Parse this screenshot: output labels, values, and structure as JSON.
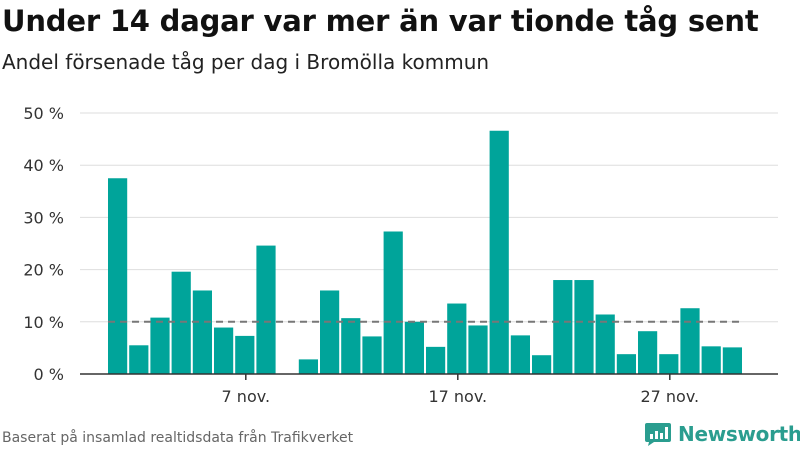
{
  "title": "Under 14 dagar var mer än var tionde tåg sent",
  "subtitle": "Andel försenade tåg per dag i Bromölla kommun",
  "footer": {
    "source": "Baserat på insamlad realtidsdata från Trafikverket",
    "brand": "Newsworthy",
    "brand_color": "#2a9d8f"
  },
  "chart_data": {
    "type": "bar",
    "title": "Under 14 dagar var mer än var tionde tåg sent",
    "subtitle": "Andel försenade tåg per dag i Bromölla kommun",
    "xlabel": "",
    "ylabel": "",
    "bar_color": "#00a49a",
    "reference_line": {
      "value": 10,
      "style": "dashed",
      "color": "#777777"
    },
    "x_start_day_of_november": 1,
    "categories": [
      "1 nov.",
      "2 nov.",
      "3 nov.",
      "4 nov.",
      "5 nov.",
      "6 nov.",
      "7 nov.",
      "8 nov.",
      "9 nov.",
      "10 nov.",
      "11 nov.",
      "12 nov.",
      "13 nov.",
      "14 nov.",
      "15 nov.",
      "16 nov.",
      "17 nov.",
      "18 nov.",
      "19 nov.",
      "20 nov.",
      "21 nov.",
      "22 nov.",
      "23 nov.",
      "24 nov.",
      "25 nov.",
      "26 nov.",
      "27 nov.",
      "28 nov.",
      "29 nov.",
      "30 nov."
    ],
    "values": [
      37.5,
      5.5,
      10.8,
      19.6,
      16.0,
      8.9,
      7.3,
      24.6,
      null,
      2.8,
      16.0,
      10.7,
      7.2,
      27.3,
      10.0,
      5.2,
      13.5,
      9.3,
      46.6,
      7.4,
      3.6,
      18.0,
      18.0,
      11.4,
      3.8,
      8.2,
      3.8,
      12.6,
      5.3,
      5.1
    ],
    "ylim": [
      0,
      50
    ],
    "yticks": [
      0,
      10,
      20,
      30,
      40,
      50
    ],
    "ytick_labels": [
      "0 %",
      "10 %",
      "20 %",
      "30 %",
      "40 %",
      "50 %"
    ],
    "xtick_labels": [
      {
        "day": 7,
        "label": "7 nov."
      },
      {
        "day": 17,
        "label": "17 nov."
      },
      {
        "day": 27,
        "label": "27 nov."
      }
    ],
    "grid": true
  }
}
